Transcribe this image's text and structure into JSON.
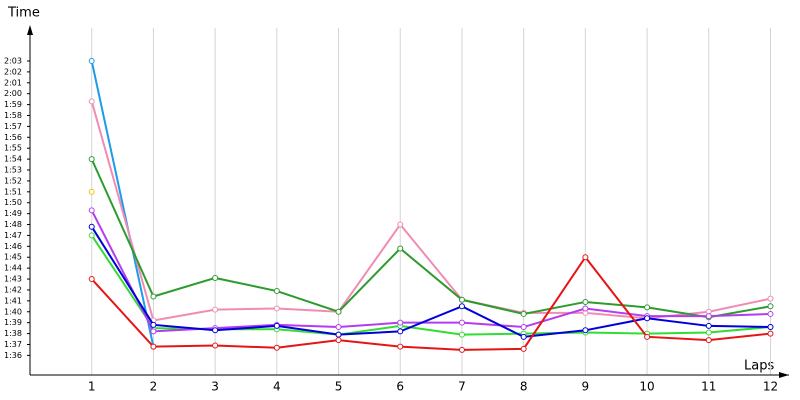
{
  "chart_data": {
    "type": "line",
    "y_label": "Time",
    "x_label": "Laps",
    "x": [
      1,
      2,
      3,
      4,
      5,
      6,
      7,
      8,
      9,
      10,
      11,
      12
    ],
    "xlim": [
      0,
      12.3
    ],
    "xticks": [
      1,
      2,
      3,
      4,
      5,
      6,
      7,
      8,
      9,
      10,
      11,
      12
    ],
    "ylim": [
      94.2,
      126.3
    ],
    "yticks": [
      {
        "value": 96,
        "label": "1:36"
      },
      {
        "value": 97,
        "label": "1:37"
      },
      {
        "value": 98,
        "label": "1:38"
      },
      {
        "value": 99,
        "label": "1:39"
      },
      {
        "value": 100,
        "label": "1:40"
      },
      {
        "value": 101,
        "label": "1:41"
      },
      {
        "value": 102,
        "label": "1:42"
      },
      {
        "value": 103,
        "label": "1:43"
      },
      {
        "value": 104,
        "label": "1:44"
      },
      {
        "value": 105,
        "label": "1:45"
      },
      {
        "value": 106,
        "label": "1:46"
      },
      {
        "value": 107,
        "label": "1:47"
      },
      {
        "value": 108,
        "label": "1:48"
      },
      {
        "value": 109,
        "label": "1:49"
      },
      {
        "value": 110,
        "label": "1:50"
      },
      {
        "value": 111,
        "label": "1:51"
      },
      {
        "value": 112,
        "label": "1:52"
      },
      {
        "value": 113,
        "label": "1:53"
      },
      {
        "value": 114,
        "label": "1:54"
      },
      {
        "value": 115,
        "label": "1:55"
      },
      {
        "value": 116,
        "label": "1:56"
      },
      {
        "value": 117,
        "label": "1:57"
      },
      {
        "value": 118,
        "label": "1:58"
      },
      {
        "value": 119,
        "label": "1:59"
      },
      {
        "value": 120,
        "label": "2:00"
      },
      {
        "value": 121,
        "label": "2:01"
      },
      {
        "value": 122,
        "label": "2:02"
      },
      {
        "value": 123,
        "label": "2:03"
      }
    ],
    "grid": "x",
    "series": [
      {
        "color": "#e6c800",
        "values": [
          111.0,
          null,
          null,
          null,
          null,
          null,
          null,
          null,
          null,
          null,
          null,
          null
        ]
      },
      {
        "color": "#1e9be6",
        "values": [
          123.0,
          96.8,
          null,
          null,
          null,
          null,
          null,
          null,
          null,
          null,
          null,
          null
        ]
      },
      {
        "color": "#f08cb4",
        "values": [
          119.3,
          99.2,
          100.2,
          100.3,
          100.0,
          108.0,
          101.1,
          99.9,
          99.9,
          99.4,
          100.0,
          101.2
        ]
      },
      {
        "color": "#2d9b2d",
        "values": [
          114.0,
          101.4,
          103.1,
          101.9,
          100.0,
          105.8,
          101.1,
          99.8,
          100.9,
          100.4,
          99.5,
          100.5
        ]
      },
      {
        "color": "#32dc32",
        "values": [
          107.0,
          98.5,
          98.4,
          98.4,
          97.9,
          98.7,
          97.9,
          98.0,
          98.1,
          98.0,
          98.1,
          98.6
        ]
      },
      {
        "color": "#b43cf0",
        "values": [
          109.3,
          98.2,
          98.5,
          98.8,
          98.6,
          99.0,
          99.0,
          98.6,
          100.3,
          99.6,
          99.6,
          99.8
        ]
      },
      {
        "color": "#0000dc",
        "values": [
          107.8,
          98.8,
          98.3,
          98.7,
          97.9,
          98.2,
          100.5,
          97.7,
          98.3,
          99.4,
          98.7,
          98.6
        ]
      },
      {
        "color": "#e61414",
        "values": [
          103.0,
          96.8,
          96.9,
          96.7,
          97.4,
          96.8,
          96.5,
          96.6,
          105.0,
          97.7,
          97.4,
          98.0
        ]
      }
    ]
  }
}
